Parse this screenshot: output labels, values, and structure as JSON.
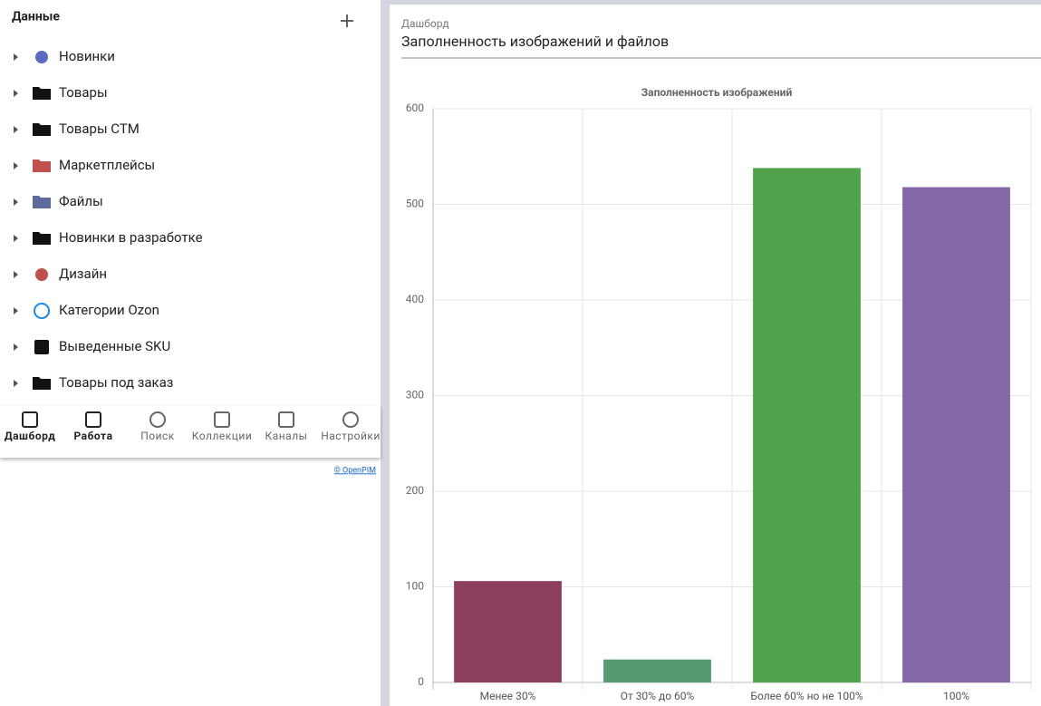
{
  "sidebar": {
    "title": "Данные",
    "items": [
      "Новинки",
      "Товары",
      "Товары СТМ",
      "Маркетплейсы",
      "Файлы",
      "Новинки в разработке",
      "Дизайн",
      "Категории Ozon",
      "Выведенные SKU",
      "Товары под заказ"
    ]
  },
  "nav": {
    "items": [
      "Дашборд",
      "Работа",
      "Поиск",
      "Коллекции",
      "Каналы",
      "Настройки"
    ]
  },
  "footer": {
    "link": "© OpenPIM"
  },
  "header": {
    "breadcrumb": "Дашборд",
    "title": "Заполненность изображений и файлов"
  },
  "chart_data": {
    "type": "bar",
    "title": "Заполненность изображений",
    "categories": [
      "Менее 30%",
      "От 30% до 60%",
      "Более 60% но не 100%",
      "100%"
    ],
    "values": [
      106,
      24,
      538,
      518
    ],
    "colors": [
      "#8b3f5c",
      "#559a72",
      "#51a34b",
      "#8566a6"
    ],
    "ylim": [
      0,
      600
    ],
    "yticks": [
      0,
      100,
      200,
      300,
      400,
      500,
      600
    ],
    "grid": true
  }
}
